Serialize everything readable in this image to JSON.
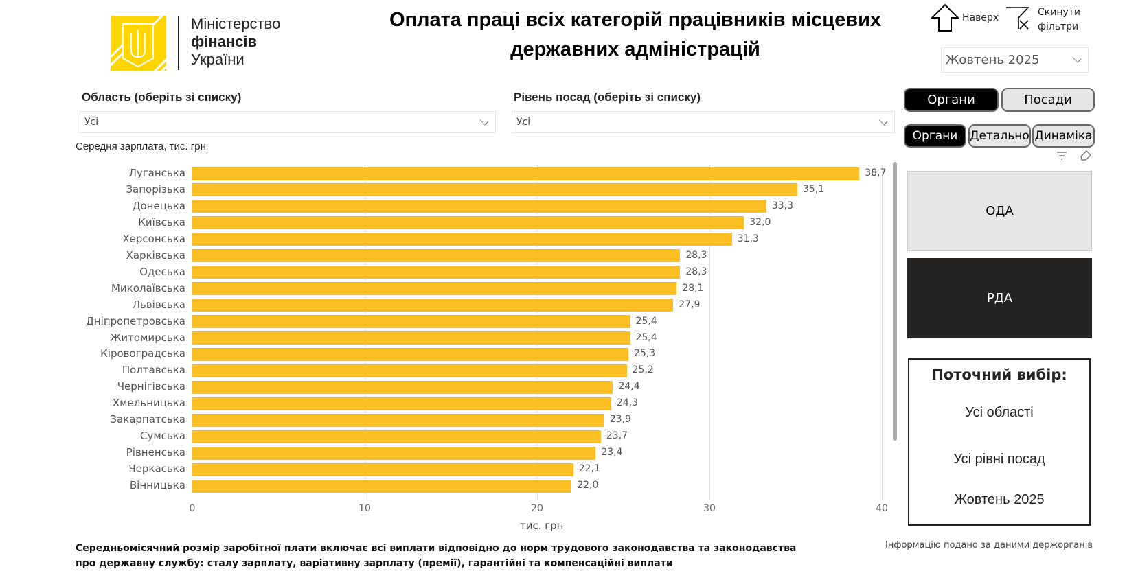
{
  "header": {
    "title_line1": "Оплата праці всіх категорій працівників місцевих",
    "title_line2": "державних адміністрацій",
    "logo": {
      "line1": "Міністерство",
      "line2": "фінансів",
      "line3": "України",
      "color": "#FFD500"
    }
  },
  "toolbar": {
    "up_label": "Наверх",
    "reset_label_1": "Скинути",
    "reset_label_2": "фільтри",
    "period": "Жовтень 2025"
  },
  "filters": {
    "region_label": "Область (оберіть зі списку)",
    "region_value": "Усі",
    "level_label": "Рівень посад (оберіть зі списку)",
    "level_value": "Усі"
  },
  "toggle_main": [
    {
      "label": "Органи",
      "active": true
    },
    {
      "label": "Посади",
      "active": false
    }
  ],
  "toggle_sub": [
    {
      "label": "Органи",
      "active": true
    },
    {
      "label": "Детально",
      "active": false
    },
    {
      "label": "Динаміка",
      "active": false
    }
  ],
  "tiles": [
    {
      "label": "ОДА",
      "selected": false
    },
    {
      "label": "РДА",
      "selected": true
    }
  ],
  "current": {
    "title": "Поточний вибір:",
    "region": "Усі області",
    "level": "Усі рівні посад",
    "period": "Жовтень 2025"
  },
  "footer": {
    "note_line1": "Середньомісячний розмір заробітної плати включає всі виплати відповідно до норм трудового законодавства та законодавства",
    "note_line2": "про державну службу: сталу зарплату, варіативну зарплату (премії), гарантійні та компенсаційні виплати",
    "source": "Інформацію подано за даними держорганів"
  },
  "chart_data": {
    "type": "bar",
    "orientation": "horizontal",
    "title": "Середня зарплата, тис. грн",
    "xlabel": "тис. грн",
    "xlim": [
      0,
      40
    ],
    "xticks": [
      "0",
      "10",
      "20",
      "30",
      "40"
    ],
    "grid": "vertical dotted",
    "bar_color": "#FBBF24",
    "categories": [
      "Луганська",
      "Запорізька",
      "Донецька",
      "Київська",
      "Херсонська",
      "Харківська",
      "Одеська",
      "Миколаївська",
      "Львівська",
      "Дніпропетровська",
      "Житомирська",
      "Кіровоградська",
      "Полтавська",
      "Чернігівська",
      "Хмельницька",
      "Закарпатська",
      "Сумська",
      "Рівненська",
      "Черкаська",
      "Вінницька"
    ],
    "values": [
      38.7,
      35.1,
      33.3,
      32.0,
      31.3,
      28.3,
      28.3,
      28.1,
      27.9,
      25.4,
      25.4,
      25.3,
      25.2,
      24.4,
      24.3,
      23.9,
      23.7,
      23.4,
      22.1,
      22.0
    ],
    "labels": [
      "38,7",
      "35,1",
      "33,3",
      "32,0",
      "31,3",
      "28,3",
      "28,3",
      "28,1",
      "27,9",
      "25,4",
      "25,4",
      "25,3",
      "25,2",
      "24,4",
      "24,3",
      "23,9",
      "23,7",
      "23,4",
      "22,1",
      "22,0"
    ]
  }
}
